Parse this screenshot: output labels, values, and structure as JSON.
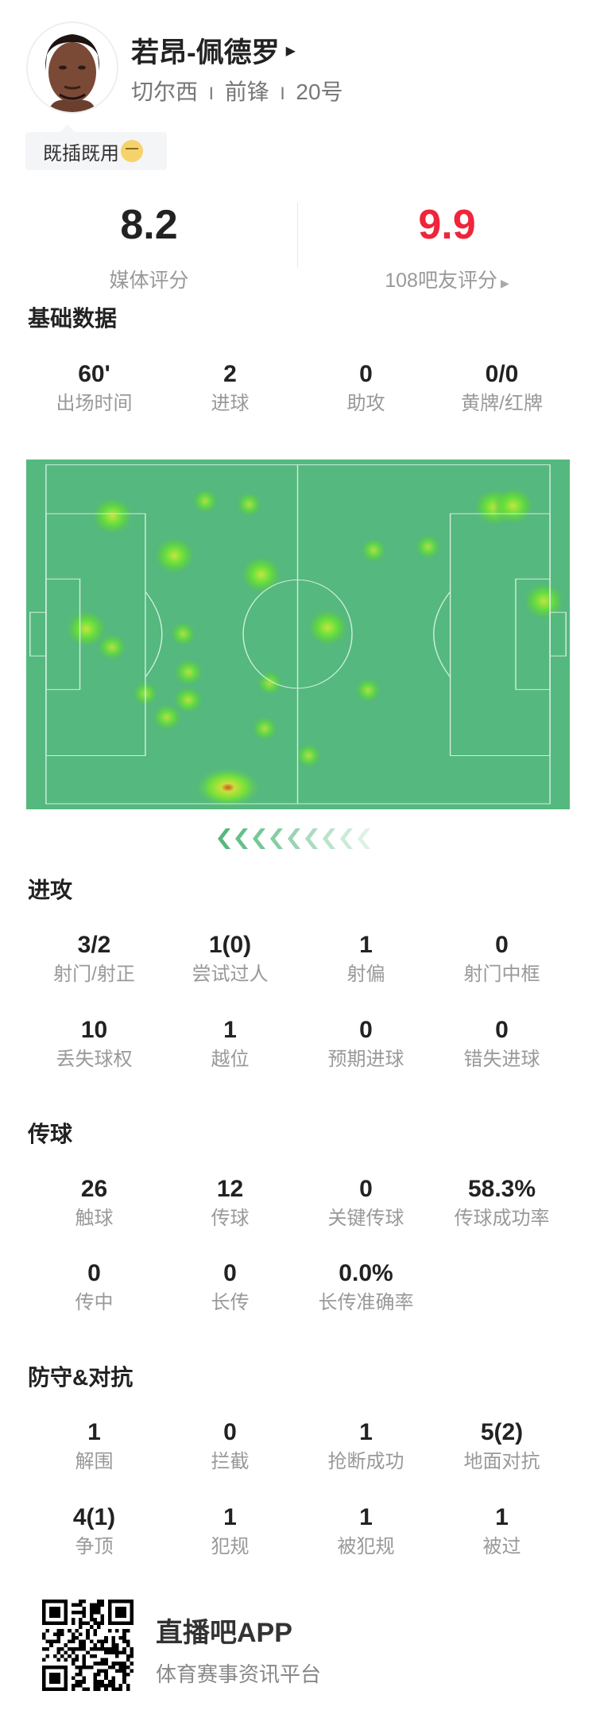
{
  "player": {
    "name": "若昂-佩德罗",
    "team": "切尔西",
    "position": "前锋",
    "number": "20号",
    "separator": "I",
    "comment": "既插既用"
  },
  "ratings": {
    "media_value": "8.2",
    "media_label": "媒体评分",
    "fan_value": "9.9",
    "fan_label": "108吧友评分",
    "fan_color": "#f0243a"
  },
  "sections": [
    {
      "title": "基础数据",
      "rows": [
        [
          {
            "v": "60'",
            "l": "出场时间"
          },
          {
            "v": "2",
            "l": "进球"
          },
          {
            "v": "0",
            "l": "助攻"
          },
          {
            "v": "0/0",
            "l": "黄牌/红牌"
          }
        ]
      ]
    },
    {
      "title": "进攻",
      "rows": [
        [
          {
            "v": "3/2",
            "l": "射门/射正"
          },
          {
            "v": "1(0)",
            "l": "尝试过人"
          },
          {
            "v": "1",
            "l": "射偏"
          },
          {
            "v": "0",
            "l": "射门中框"
          }
        ],
        [
          {
            "v": "10",
            "l": "丢失球权"
          },
          {
            "v": "1",
            "l": "越位"
          },
          {
            "v": "0",
            "l": "预期进球"
          },
          {
            "v": "0",
            "l": "错失进球"
          }
        ]
      ]
    },
    {
      "title": "传球",
      "rows": [
        [
          {
            "v": "26",
            "l": "触球"
          },
          {
            "v": "12",
            "l": "传球"
          },
          {
            "v": "0",
            "l": "关键传球"
          },
          {
            "v": "58.3%",
            "l": "传球成功率"
          }
        ],
        [
          {
            "v": "0",
            "l": "传中"
          },
          {
            "v": "0",
            "l": "长传"
          },
          {
            "v": "0.0%",
            "l": "长传准确率"
          }
        ]
      ]
    },
    {
      "title": "防守&对抗",
      "rows": [
        [
          {
            "v": "1",
            "l": "解围"
          },
          {
            "v": "0",
            "l": "拦截"
          },
          {
            "v": "1",
            "l": "抢断成功"
          },
          {
            "v": "5(2)",
            "l": "地面对抗"
          }
        ],
        [
          {
            "v": "4(1)",
            "l": "争顶"
          },
          {
            "v": "1",
            "l": "犯规"
          },
          {
            "v": "1",
            "l": "被犯规"
          },
          {
            "v": "1",
            "l": "被过"
          }
        ]
      ]
    }
  ],
  "heatmap": {
    "pitch_color": "#55b87e",
    "line_color": "#cfeedd",
    "attack_direction": "left",
    "points": [
      [
        13.2,
        15.1,
        1.0
      ],
      [
        31.6,
        10.7,
        0.6
      ],
      [
        40.3,
        11.7,
        0.6
      ],
      [
        25.5,
        26.8,
        1.0
      ],
      [
        42.7,
        32.4,
        1.0
      ],
      [
        65.0,
        25.2,
        0.6
      ],
      [
        75.8,
        24.2,
        0.6
      ],
      [
        89.0,
        12.5,
        1.0
      ],
      [
        92.7,
        12.1,
        1.0
      ],
      [
        98.8,
        40.2,
        0.9
      ],
      [
        8.0,
        48.4,
        1.0
      ],
      [
        13.1,
        53.8,
        0.7
      ],
      [
        27.2,
        49.9,
        0.6
      ],
      [
        28.3,
        61.2,
        0.7
      ],
      [
        19.7,
        67.5,
        0.6
      ],
      [
        28.2,
        69.4,
        0.8
      ],
      [
        24.0,
        74.5,
        0.7
      ],
      [
        44.4,
        64.4,
        0.6
      ],
      [
        55.9,
        48.0,
        1.0
      ],
      [
        43.4,
        77.8,
        0.6
      ],
      [
        63.9,
        66.5,
        0.6
      ],
      [
        52.1,
        85.8,
        0.6
      ],
      [
        36.1,
        95.2,
        1.3
      ]
    ]
  },
  "footer": {
    "app_name": "直播吧APP",
    "slogan": "体育赛事资讯平台"
  }
}
